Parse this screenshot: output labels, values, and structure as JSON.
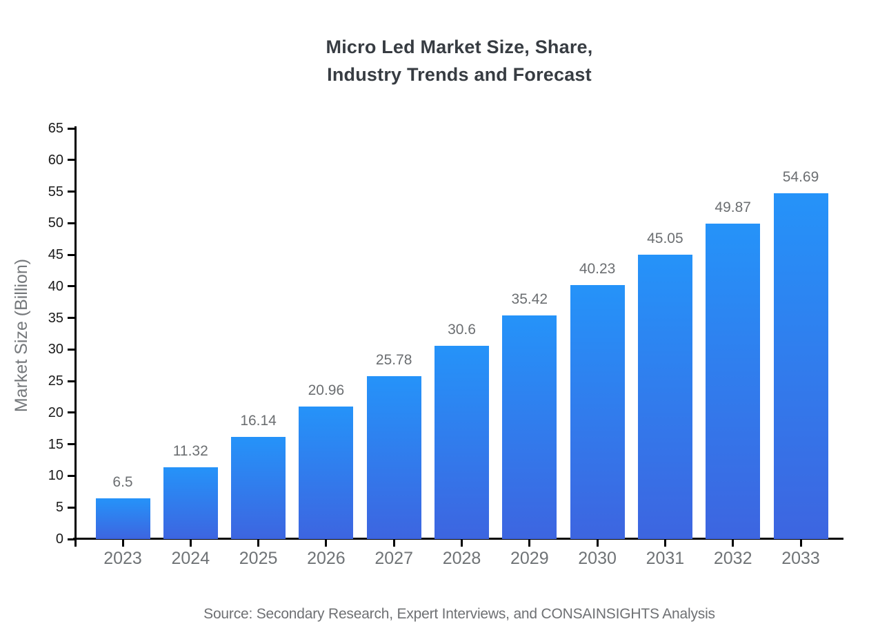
{
  "title": "Micro Led Market Size, Share,\nIndustry Trends and Forecast",
  "footer": {
    "source": "Source: Secondary Research, Expert Interviews, and CONSAINSIGHTS Analysis"
  },
  "chart_data": {
    "type": "bar",
    "title": "Micro Led Market Size, Share, Industry Trends and Forecast",
    "categories": [
      "2023",
      "2024",
      "2025",
      "2026",
      "2027",
      "2028",
      "2029",
      "2030",
      "2031",
      "2032",
      "2033"
    ],
    "values": [
      6.5,
      11.32,
      16.14,
      20.96,
      25.78,
      30.6,
      35.42,
      40.23,
      45.05,
      49.87,
      54.69
    ],
    "value_labels": [
      "6.5",
      "11.32",
      "16.14",
      "20.96",
      "25.78",
      "30.6",
      "35.42",
      "40.23",
      "45.05",
      "49.87",
      "54.69"
    ],
    "xlabel": "",
    "ylabel": "Market Size (Billion)",
    "ylim": [
      0,
      65
    ],
    "ytick_step": 5,
    "grid": false,
    "legend": "none",
    "colors": {
      "bar_gradient_top": "#2593F9",
      "bar_gradient_bottom": "#3D65E0",
      "axis": "#000000",
      "value_label": "#6B6E71",
      "x_tick_label": "#6F7376",
      "y_tick_label": "#1A1A1A",
      "title": "#373C42",
      "source": "#6E7073"
    }
  }
}
